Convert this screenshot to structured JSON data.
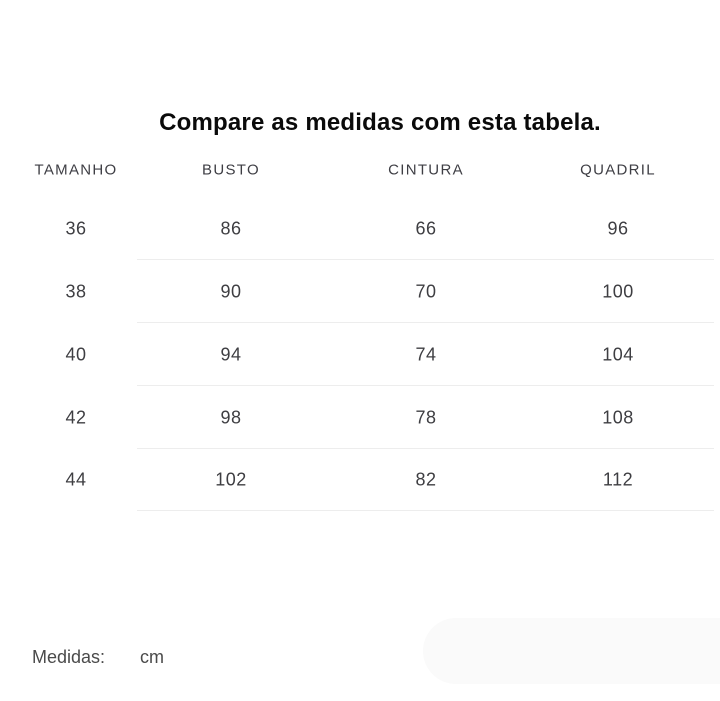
{
  "page": {
    "title": "Compare as medidas com esta tabela."
  },
  "table": {
    "columns": [
      {
        "key": "tamanho",
        "label": "TAMANHO"
      },
      {
        "key": "busto",
        "label": "BUSTO"
      },
      {
        "key": "cintura",
        "label": "CINTURA"
      },
      {
        "key": "quadril",
        "label": "QUADRIL"
      }
    ],
    "rows": [
      [
        "36",
        "86",
        "66",
        "96"
      ],
      [
        "38",
        "90",
        "70",
        "100"
      ],
      [
        "40",
        "94",
        "74",
        "104"
      ],
      [
        "42",
        "98",
        "78",
        "108"
      ],
      [
        "44",
        "102",
        "82",
        "112"
      ]
    ]
  },
  "footer": {
    "label": "Medidas:",
    "unit": "cm"
  },
  "colors": {
    "title_text": "#0a0a0a",
    "body_text": "#3e3e42",
    "divider": "#ededed",
    "background": "#ffffff",
    "pill_background": "#fafafa"
  }
}
